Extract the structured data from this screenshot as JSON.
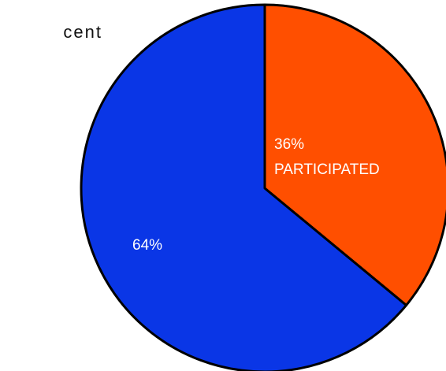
{
  "chart_data": {
    "type": "pie",
    "title": "cent",
    "slices": [
      {
        "label": "PARTICIPATED",
        "value": 36,
        "value_label": "36%",
        "color": "#ff4f00"
      },
      {
        "label": "",
        "value": 64,
        "value_label": "64%",
        "color": "#0a36e6"
      }
    ],
    "start_angle": "12 o'clock",
    "direction": "clockwise",
    "outline_color": "#000000",
    "legend": "none"
  }
}
